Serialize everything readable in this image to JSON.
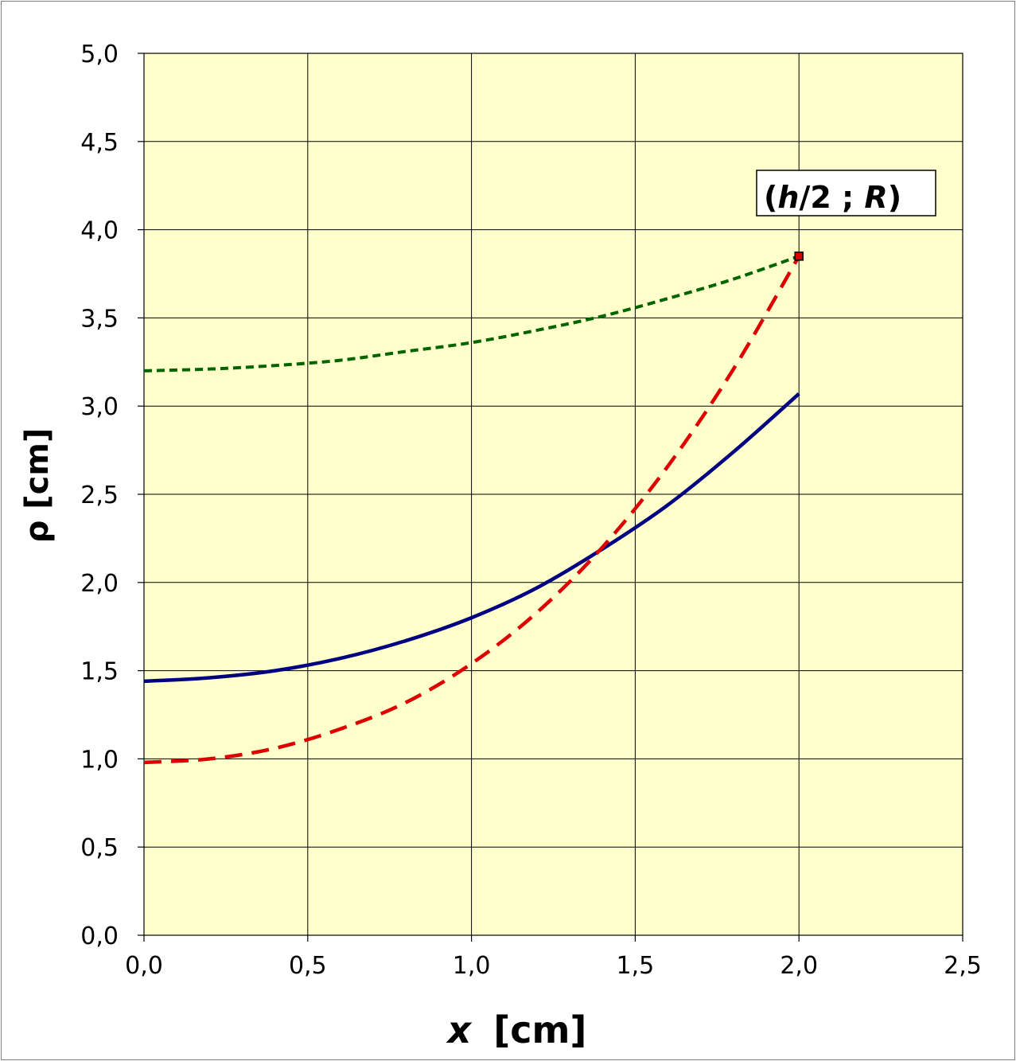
{
  "chart_data": {
    "type": "line",
    "xlabel_var": "x",
    "xlabel_unit": "[cm]",
    "ylabel": "ρ [cm]",
    "xlim": [
      0,
      2.5
    ],
    "ylim": [
      0,
      5
    ],
    "x_ticks": [
      "0,0",
      "0,5",
      "1,0",
      "1,5",
      "2,0",
      "2,5"
    ],
    "y_ticks": [
      "0,0",
      "0,5",
      "1,0",
      "1,5",
      "2,0",
      "2,5",
      "3,0",
      "3,5",
      "4,0",
      "4,5",
      "5,0"
    ],
    "grid": true,
    "legend": "none",
    "plot_background": "#ffffcc",
    "series": [
      {
        "color": "#006400",
        "style": "dotted",
        "x": [
          0,
          0.2,
          0.4,
          0.6,
          0.8,
          1.0,
          1.2,
          1.4,
          1.6,
          1.8,
          2.0
        ],
        "values": [
          3.2,
          3.21,
          3.23,
          3.26,
          3.31,
          3.36,
          3.43,
          3.51,
          3.61,
          3.72,
          3.85
        ]
      },
      {
        "color": "#000080",
        "style": "solid",
        "x": [
          0,
          0.2,
          0.4,
          0.6,
          0.8,
          1.0,
          1.2,
          1.4,
          1.6,
          1.8,
          2.0
        ],
        "values": [
          1.44,
          1.46,
          1.5,
          1.57,
          1.67,
          1.8,
          1.97,
          2.19,
          2.44,
          2.74,
          3.07
        ]
      },
      {
        "color": "#dd0000",
        "style": "dashed",
        "x": [
          0,
          0.2,
          0.4,
          0.6,
          0.8,
          1.0,
          1.2,
          1.4,
          1.6,
          1.8,
          2.0
        ],
        "values": [
          0.98,
          1.0,
          1.06,
          1.17,
          1.32,
          1.54,
          1.83,
          2.2,
          2.66,
          3.21,
          3.85
        ]
      }
    ],
    "annotation": {
      "open": "(",
      "var1": "h",
      "mid": "/2 ; ",
      "var2": "R",
      "close": ")",
      "x": 2.0,
      "y": 3.85,
      "marker_color": "#dd0000"
    }
  }
}
